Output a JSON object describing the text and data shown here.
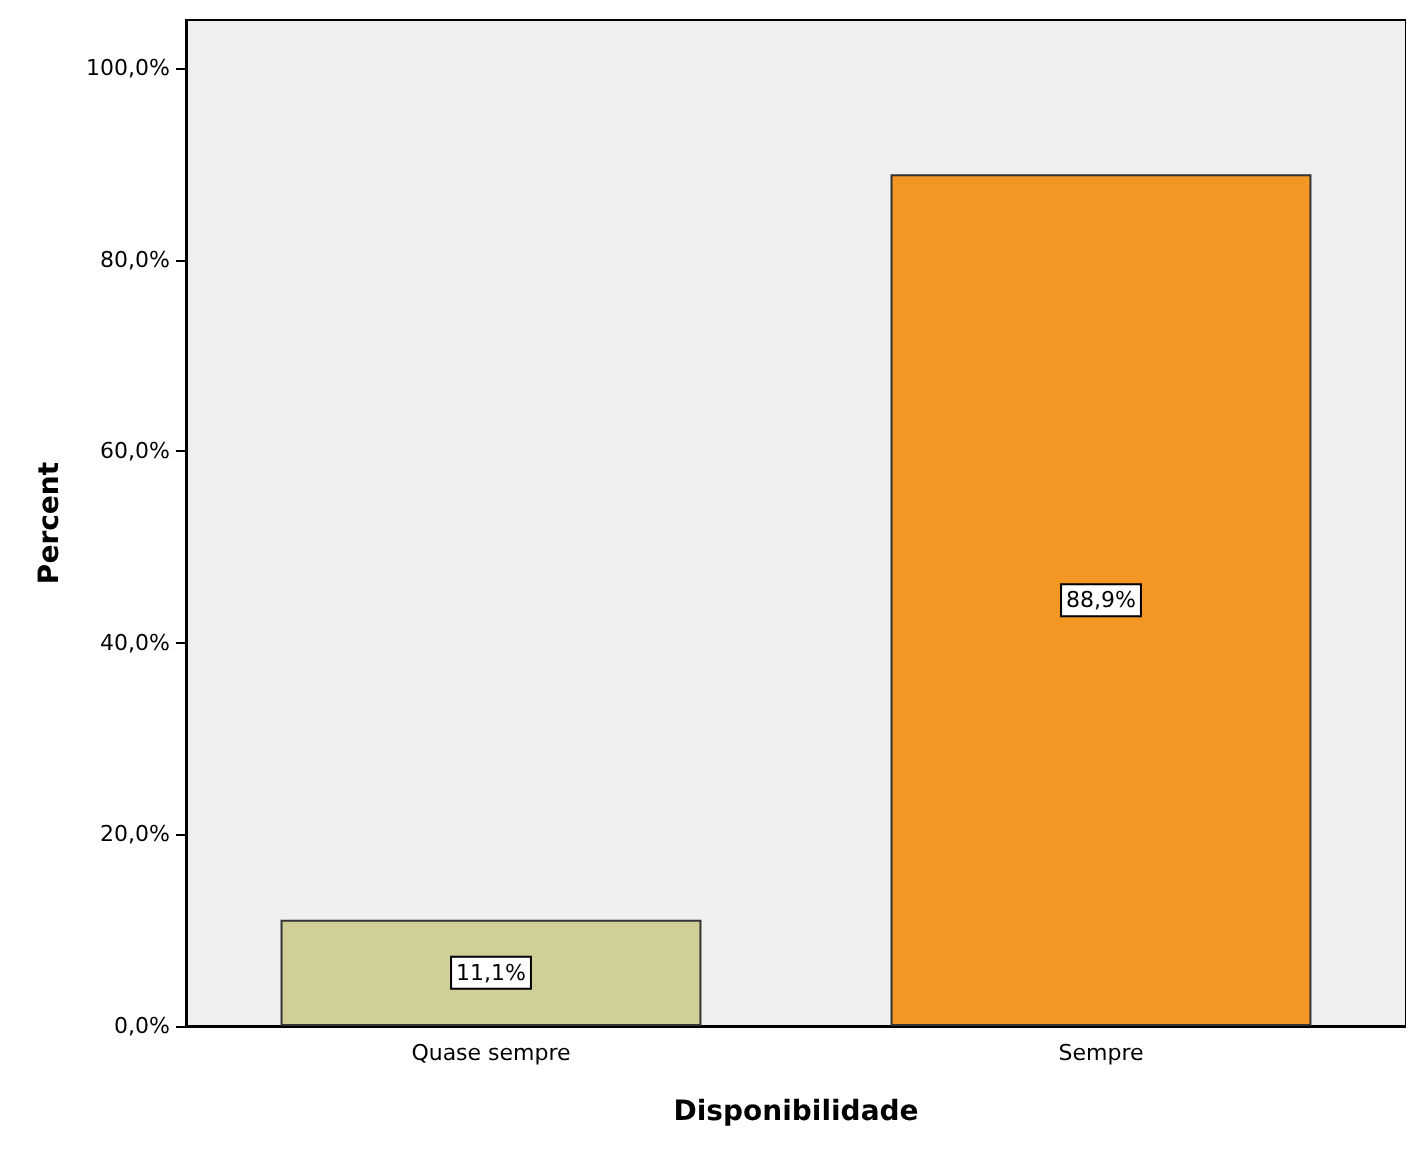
{
  "chart_data": {
    "type": "bar",
    "xlabel": "Disponibilidade",
    "ylabel": "Percent",
    "categories": [
      "Quase sempre",
      "Sempre"
    ],
    "values": [
      11.1,
      88.9
    ],
    "colors": [
      "#d1cf98",
      "#f39623"
    ],
    "value_labels": [
      "11,1%",
      "88,9%"
    ],
    "ylim": [
      0,
      105
    ],
    "yticks": [
      {
        "value": 0,
        "label": "0,0%"
      },
      {
        "value": 20,
        "label": "20,0%"
      },
      {
        "value": 40,
        "label": "40,0%"
      },
      {
        "value": 60,
        "label": "60,0%"
      },
      {
        "value": 80,
        "label": "80,0%"
      },
      {
        "value": 100,
        "label": "100,0%"
      }
    ],
    "grid": false
  }
}
